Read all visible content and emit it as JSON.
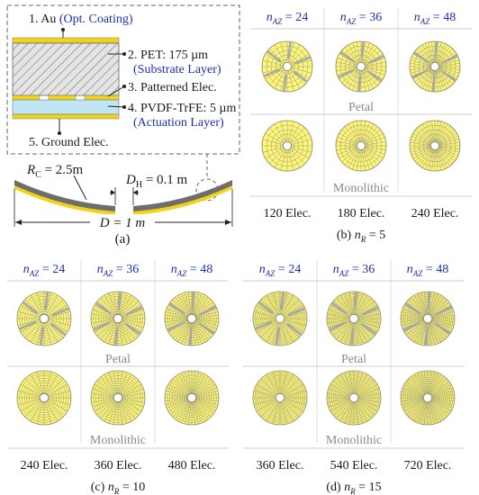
{
  "figure": {
    "panel_a": {
      "label": "(a)",
      "layers": [
        {
          "text": "1. Au",
          "note": "(Opt. Coating)"
        },
        {
          "text": "2. PET: 175 µm",
          "note": "(Substrate Layer)"
        },
        {
          "text": "3. Patterned Elec.",
          "note": ""
        },
        {
          "text": "4. PVDF-TrFE: 5 µm",
          "note": "(Actuation Layer)"
        },
        {
          "text": "5. Ground Elec.",
          "note": ""
        }
      ],
      "rc_label": "R",
      "rc_sub": "C",
      "rc_value": " = 2.5m",
      "dh_label": "D",
      "dh_sub": "H",
      "dh_value": " = 0.1 m",
      "d_label": "D = 1 m"
    },
    "nr_prefix": "n",
    "nr_sub": "R",
    "naz_prefix": "n",
    "naz_sub": "AZ",
    "petal_label": "Petal",
    "mono_label": "Monolithic",
    "panels": [
      {
        "label": "(b)",
        "nr": " = 5",
        "naz": [
          " = 24",
          " = 36",
          " = 48"
        ],
        "elec": [
          "120 Elec.",
          "180 Elec.",
          "240 Elec."
        ]
      },
      {
        "label": "(c)",
        "nr": " = 10",
        "naz": [
          " = 24",
          " = 36",
          " = 48"
        ],
        "elec": [
          "240 Elec.",
          "360 Elec.",
          "480 Elec."
        ]
      },
      {
        "label": "(d)",
        "nr": " = 15",
        "naz": [
          " = 24",
          " = 36",
          " = 48"
        ],
        "elec": [
          "360 Elec.",
          "540 Elec.",
          "720 Elec."
        ]
      }
    ],
    "colors": {
      "disk_fill": "#fdf57a",
      "grid_line": "#9a9a72",
      "petal_gap": "#a8a8a8",
      "au_layer": "#f2d31b",
      "pet_layer": "#d8d8d8",
      "pvdf_layer": "#bfe6f2",
      "label_blue": "#1f2fb0"
    }
  }
}
